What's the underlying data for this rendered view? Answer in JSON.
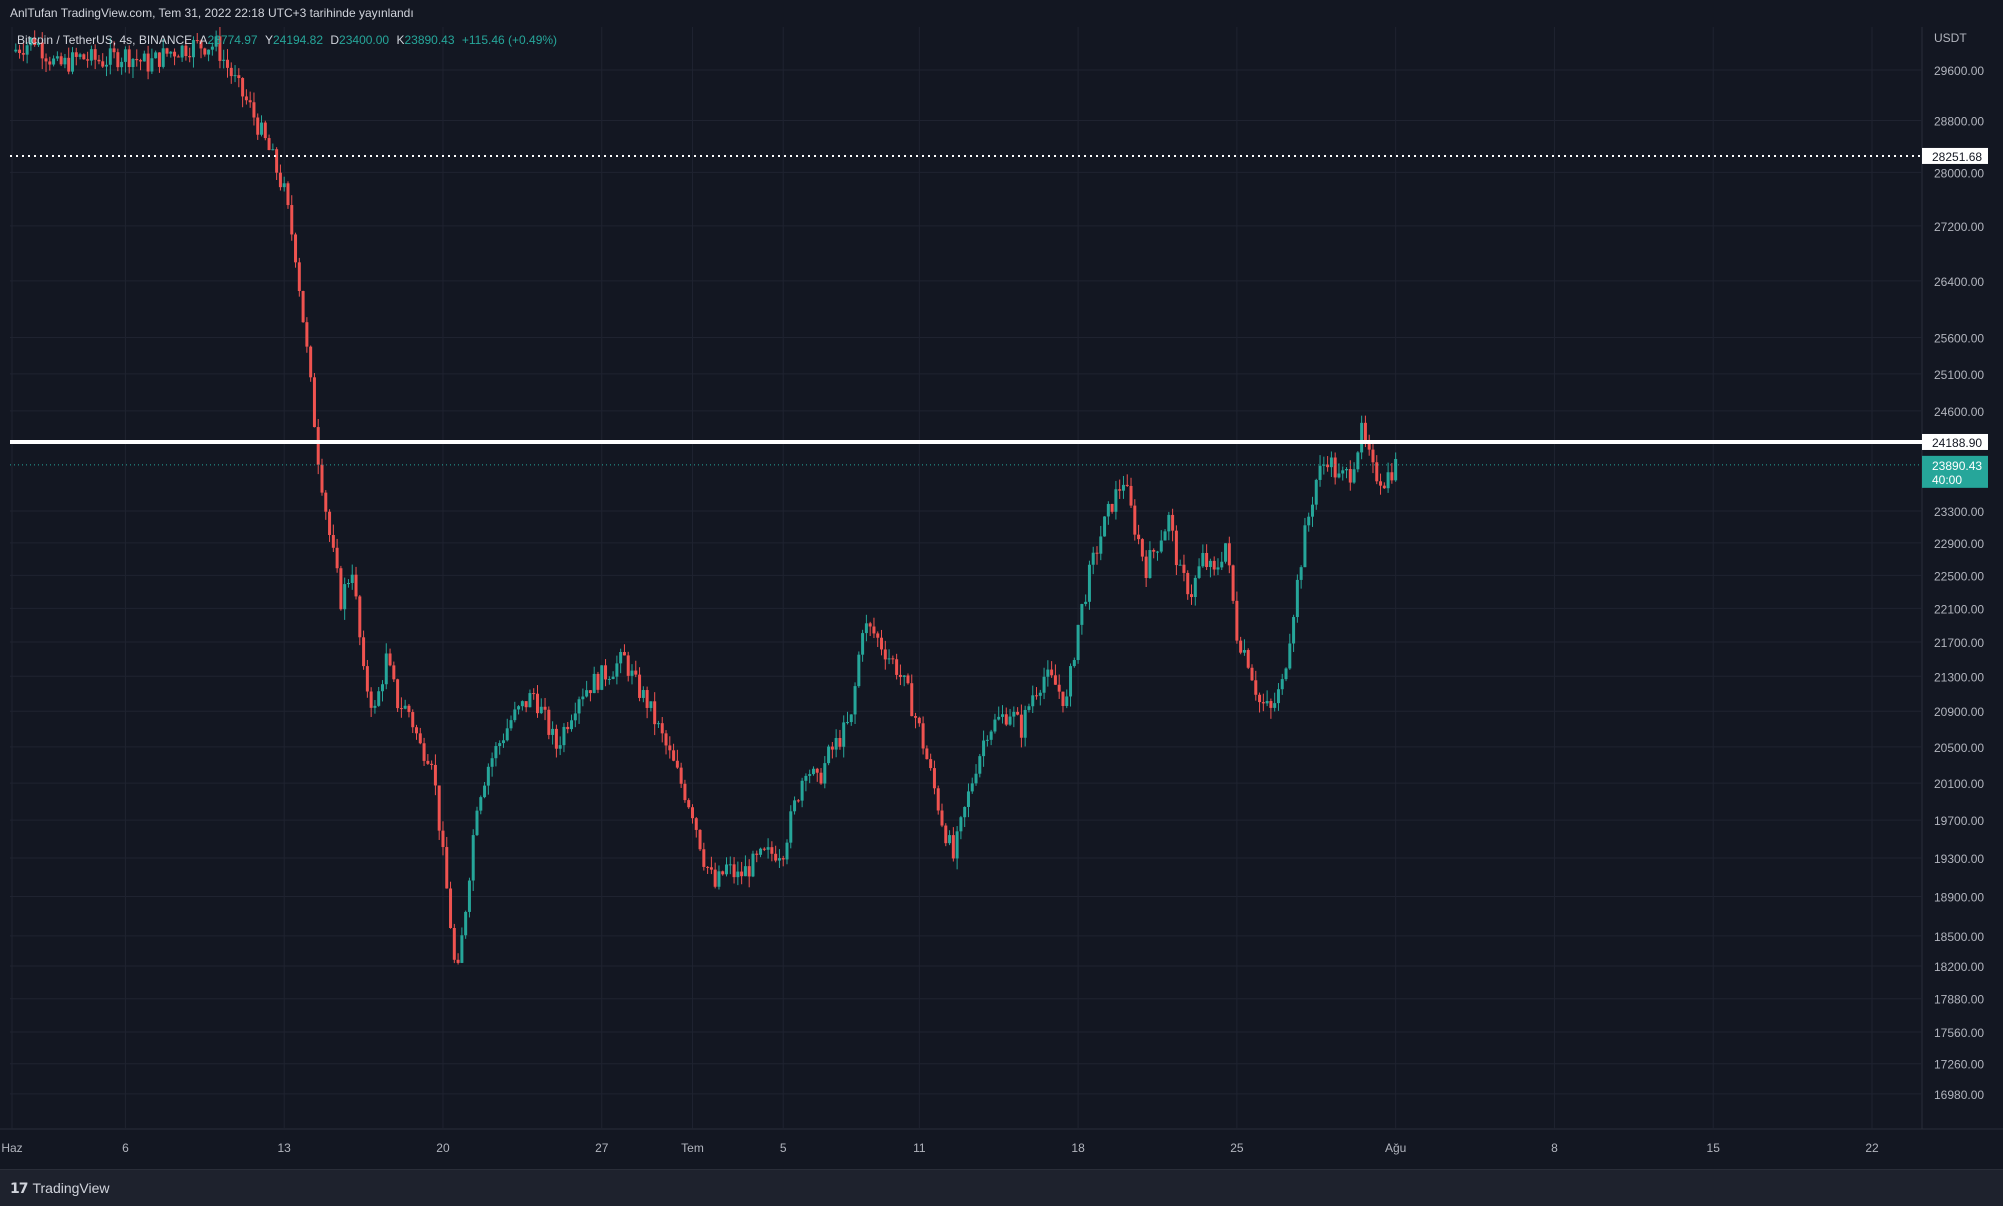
{
  "header": {
    "publish_line": "AnlTufan TradingView.com, Tem 31, 2022 22:18 UTC+3 tarihinde yayınlandı"
  },
  "legend": {
    "symbol": "Bitcoin / TetherUS, 4s, BINANCE",
    "open_label": "A",
    "open": "23774.97",
    "high_label": "Y",
    "high": "24194.82",
    "low_label": "D",
    "low": "23400.00",
    "close_label": "K",
    "close": "23890.43",
    "change": "+115.46 (+0.49%)"
  },
  "footer": {
    "brand": "TradingView"
  },
  "colors": {
    "background": "#131722",
    "grid": "#1f2330",
    "up": "#26a69a",
    "down": "#ef5350",
    "axis_text": "#b2b5be",
    "level_line": "#ffffff"
  },
  "chart_data": {
    "type": "candlestick",
    "symbol": "BTCUSDT",
    "exchange": "BINANCE",
    "interval": "4s",
    "currency_label": "USDT",
    "y_scale": "log",
    "ylim": [
      16750,
      30300
    ],
    "xlim": [
      0,
      61
    ],
    "x_tick_labels": [
      {
        "day": 0,
        "label": "Haz"
      },
      {
        "day": 5,
        "label": "6"
      },
      {
        "day": 12,
        "label": "13"
      },
      {
        "day": 19,
        "label": "20"
      },
      {
        "day": 26,
        "label": "27"
      },
      {
        "day": 30,
        "label": "Tem"
      },
      {
        "day": 34,
        "label": "5"
      },
      {
        "day": 40,
        "label": "11"
      },
      {
        "day": 47,
        "label": "18"
      },
      {
        "day": 54,
        "label": "25"
      },
      {
        "day": 61,
        "label": "Ağu"
      },
      {
        "day": 68,
        "label": "8"
      },
      {
        "day": 75,
        "label": "15"
      },
      {
        "day": 82,
        "label": "22"
      }
    ],
    "y_tick_labels": [
      "29600.00",
      "28800.00",
      "28000.00",
      "27200.00",
      "26400.00",
      "25600.00",
      "25100.00",
      "24600.00",
      "23300.00",
      "22900.00",
      "22500.00",
      "22100.00",
      "21700.00",
      "21300.00",
      "20900.00",
      "20500.00",
      "20100.00",
      "19700.00",
      "19300.00",
      "18900.00",
      "18500.00",
      "18200.00",
      "17880.00",
      "17560.00",
      "17260.00",
      "16980.00"
    ],
    "horizontal_levels": [
      {
        "price": 28251.68,
        "label": "28251.68",
        "style": "dotted"
      },
      {
        "price": 24188.9,
        "label": "24188.90",
        "style": "solid-thick"
      }
    ],
    "last_price": {
      "price": 23890.43,
      "label": "23890.43",
      "countdown": "40:00"
    },
    "closes": [
      [
        0.0,
        29900
      ],
      [
        1.0,
        30100
      ],
      [
        2.0,
        29650
      ],
      [
        3.0,
        29800
      ],
      [
        4.0,
        29750
      ],
      [
        5.0,
        29850
      ],
      [
        6.0,
        29700
      ],
      [
        7.0,
        29900
      ],
      [
        8.0,
        30000
      ],
      [
        9.0,
        30000
      ],
      [
        10.0,
        29300
      ],
      [
        10.5,
        29000
      ],
      [
        11.0,
        28600
      ],
      [
        11.5,
        28200
      ],
      [
        12.0,
        27700
      ],
      [
        12.5,
        26800
      ],
      [
        13.0,
        25400
      ],
      [
        13.5,
        24000
      ],
      [
        14.0,
        23000
      ],
      [
        14.5,
        22200
      ],
      [
        15.0,
        22600
      ],
      [
        15.5,
        21300
      ],
      [
        16.0,
        20900
      ],
      [
        16.5,
        21500
      ],
      [
        17.0,
        21000
      ],
      [
        17.5,
        20900
      ],
      [
        18.0,
        20500
      ],
      [
        18.5,
        20400
      ],
      [
        19.0,
        19300
      ],
      [
        19.3,
        18700
      ],
      [
        19.6,
        18000
      ],
      [
        20.0,
        18800
      ],
      [
        20.5,
        19900
      ],
      [
        21.0,
        20300
      ],
      [
        22.0,
        20800
      ],
      [
        23.0,
        21100
      ],
      [
        24.0,
        20500
      ],
      [
        25.0,
        21100
      ],
      [
        26.0,
        21300
      ],
      [
        27.0,
        21500
      ],
      [
        27.5,
        21200
      ],
      [
        28.0,
        21000
      ],
      [
        28.5,
        20700
      ],
      [
        29.0,
        20400
      ],
      [
        29.5,
        20100
      ],
      [
        30.0,
        19800
      ],
      [
        30.5,
        19300
      ],
      [
        31.0,
        19000
      ],
      [
        31.5,
        19200
      ],
      [
        32.0,
        19100
      ],
      [
        33.0,
        19300
      ],
      [
        34.0,
        19400
      ],
      [
        35.0,
        20300
      ],
      [
        35.5,
        20100
      ],
      [
        36.0,
        20400
      ],
      [
        37.0,
        20800
      ],
      [
        37.5,
        21900
      ],
      [
        38.0,
        21800
      ],
      [
        39.0,
        21400
      ],
      [
        39.5,
        21100
      ],
      [
        40.0,
        20700
      ],
      [
        40.5,
        20200
      ],
      [
        41.0,
        19700
      ],
      [
        41.5,
        19300
      ],
      [
        42.0,
        19800
      ],
      [
        42.5,
        20300
      ],
      [
        43.0,
        20700
      ],
      [
        44.0,
        20900
      ],
      [
        44.5,
        20700
      ],
      [
        45.0,
        21100
      ],
      [
        45.5,
        21300
      ],
      [
        46.0,
        21200
      ],
      [
        46.5,
        21000
      ],
      [
        47.0,
        21900
      ],
      [
        47.5,
        22500
      ],
      [
        48.0,
        23000
      ],
      [
        48.5,
        23400
      ],
      [
        49.0,
        23700
      ],
      [
        49.5,
        23100
      ],
      [
        50.0,
        22600
      ],
      [
        50.5,
        22900
      ],
      [
        51.0,
        23200
      ],
      [
        51.5,
        22500
      ],
      [
        52.0,
        22300
      ],
      [
        52.5,
        22700
      ],
      [
        53.0,
        22500
      ],
      [
        53.5,
        22900
      ],
      [
        54.0,
        21800
      ],
      [
        54.5,
        21500
      ],
      [
        55.0,
        21000
      ],
      [
        55.5,
        20900
      ],
      [
        56.0,
        21200
      ],
      [
        56.5,
        22100
      ],
      [
        57.0,
        23000
      ],
      [
        57.5,
        23700
      ],
      [
        58.0,
        24000
      ],
      [
        58.5,
        23700
      ],
      [
        59.0,
        23800
      ],
      [
        59.5,
        24300
      ],
      [
        60.0,
        23800
      ],
      [
        60.5,
        23700
      ],
      [
        61.0,
        23890
      ]
    ]
  }
}
